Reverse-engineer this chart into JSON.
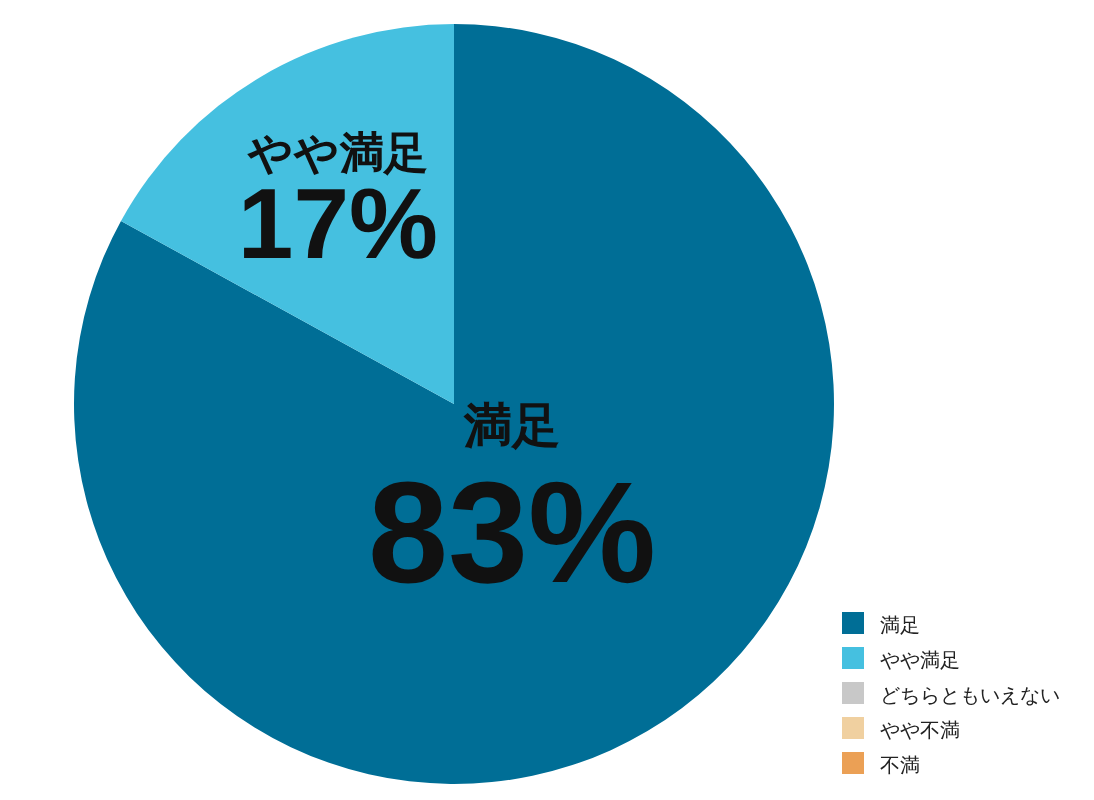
{
  "chart_data": {
    "type": "pie",
    "categories": [
      "満足",
      "やや満足",
      "どちらともいえない",
      "やや不満",
      "不満"
    ],
    "values": [
      83,
      17,
      0,
      0,
      0
    ],
    "value_labels": [
      "83%",
      "17%",
      null,
      null,
      null
    ],
    "colors": [
      "#006e96",
      "#45c0e0",
      "#c8c8c8",
      "#f0d0a0",
      "#eba055"
    ],
    "legend": "bottom right"
  }
}
